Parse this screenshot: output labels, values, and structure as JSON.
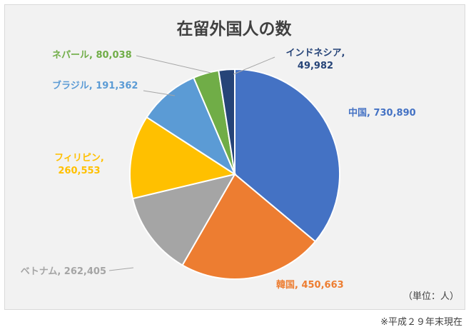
{
  "chart_data": {
    "type": "pie",
    "title": "在留外国人の数",
    "unit_note": "（単位：人）",
    "slices": [
      {
        "category": "中国",
        "value": 730890,
        "value_text": "730,890",
        "color": "#4472c4"
      },
      {
        "category": "韓国",
        "value": 450663,
        "value_text": "450,663",
        "color": "#ed7d31"
      },
      {
        "category": "ベトナム",
        "value": 262405,
        "value_text": "262,405",
        "color": "#a5a5a5"
      },
      {
        "category": "フィリピン",
        "value": 260553,
        "value_text": "260,553",
        "color": "#ffc000"
      },
      {
        "category": "ブラジル",
        "value": 191362,
        "value_text": "191,362",
        "color": "#5b9bd5"
      },
      {
        "category": "ネパール",
        "value": 80038,
        "value_text": "80,038",
        "color": "#70ad47"
      },
      {
        "category": "インドネシア",
        "value": 49982,
        "value_text": "49,982",
        "color": "#264478"
      }
    ]
  },
  "footnote": "※平成２９年末現在"
}
